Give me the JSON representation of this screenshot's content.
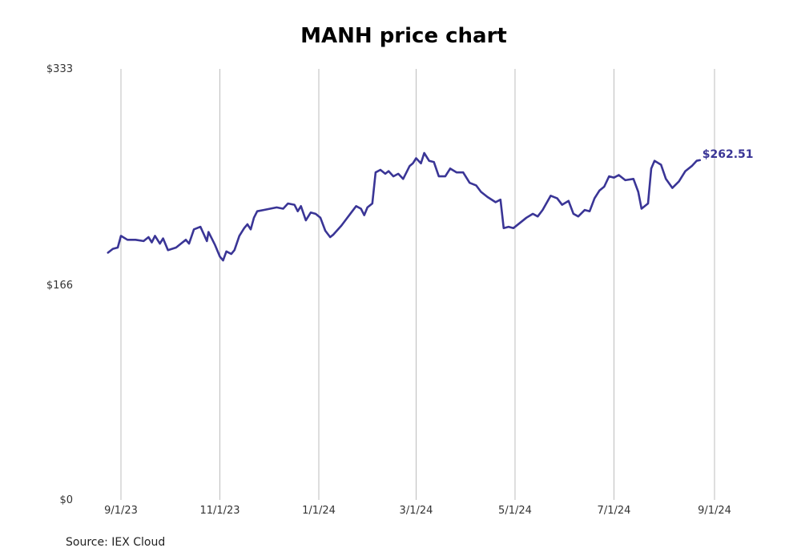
{
  "chart_data": {
    "type": "line",
    "title": "MANH price chart",
    "xlabel": "",
    "ylabel": "",
    "ylim": [
      0,
      333
    ],
    "y_ticks": [
      {
        "value": 0,
        "label": "$0"
      },
      {
        "value": 166,
        "label": "$166"
      },
      {
        "value": 333,
        "label": "$333"
      }
    ],
    "x_ticks": [
      {
        "date": "2023-09-01",
        "label": "9/1/23"
      },
      {
        "date": "2023-11-01",
        "label": "11/1/23"
      },
      {
        "date": "2024-01-01",
        "label": "1/1/24"
      },
      {
        "date": "2024-03-01",
        "label": "3/1/24"
      },
      {
        "date": "2024-05-01",
        "label": "5/1/24"
      },
      {
        "date": "2024-07-01",
        "label": "7/1/24"
      },
      {
        "date": "2024-09-01",
        "label": "9/1/24"
      }
    ],
    "grid": {
      "vertical": true,
      "horizontal": false
    },
    "line_color": "#3a3596",
    "grid_color": "#bdbdbd",
    "series": [
      {
        "last_value_label": "$262.51",
        "points": [
          [
            "2023-08-24",
            191
          ],
          [
            "2023-08-27",
            194
          ],
          [
            "2023-08-30",
            195
          ],
          [
            "2023-09-01",
            204
          ],
          [
            "2023-09-05",
            201
          ],
          [
            "2023-09-10",
            201
          ],
          [
            "2023-09-15",
            200
          ],
          [
            "2023-09-18",
            203
          ],
          [
            "2023-09-20",
            199
          ],
          [
            "2023-09-22",
            204
          ],
          [
            "2023-09-25",
            198
          ],
          [
            "2023-09-27",
            202
          ],
          [
            "2023-09-30",
            193
          ],
          [
            "2023-10-05",
            195
          ],
          [
            "2023-10-08",
            198
          ],
          [
            "2023-10-11",
            201
          ],
          [
            "2023-10-13",
            198
          ],
          [
            "2023-10-16",
            209
          ],
          [
            "2023-10-20",
            211
          ],
          [
            "2023-10-24",
            200
          ],
          [
            "2023-10-25",
            207
          ],
          [
            "2023-10-29",
            197
          ],
          [
            "2023-11-01",
            188
          ],
          [
            "2023-11-03",
            185
          ],
          [
            "2023-11-05",
            192
          ],
          [
            "2023-11-08",
            190
          ],
          [
            "2023-11-10",
            193
          ],
          [
            "2023-11-13",
            204
          ],
          [
            "2023-11-16",
            210
          ],
          [
            "2023-11-18",
            213
          ],
          [
            "2023-11-20",
            209
          ],
          [
            "2023-11-22",
            218
          ],
          [
            "2023-11-24",
            223
          ],
          [
            "2023-11-28",
            224
          ],
          [
            "2023-12-02",
            225
          ],
          [
            "2023-12-06",
            226
          ],
          [
            "2023-12-10",
            225
          ],
          [
            "2023-12-13",
            229
          ],
          [
            "2023-12-17",
            228
          ],
          [
            "2023-12-19",
            223
          ],
          [
            "2023-12-21",
            227
          ],
          [
            "2023-12-24",
            216
          ],
          [
            "2023-12-27",
            222
          ],
          [
            "2023-12-30",
            221
          ],
          [
            "2024-01-02",
            218
          ],
          [
            "2024-01-05",
            208
          ],
          [
            "2024-01-08",
            203
          ],
          [
            "2024-01-10",
            205
          ],
          [
            "2024-01-15",
            212
          ],
          [
            "2024-01-18",
            217
          ],
          [
            "2024-01-21",
            222
          ],
          [
            "2024-01-24",
            227
          ],
          [
            "2024-01-27",
            225
          ],
          [
            "2024-01-29",
            220
          ],
          [
            "2024-01-31",
            226
          ],
          [
            "2024-02-03",
            229
          ],
          [
            "2024-02-05",
            253
          ],
          [
            "2024-02-08",
            255
          ],
          [
            "2024-02-11",
            252
          ],
          [
            "2024-02-13",
            254
          ],
          [
            "2024-02-16",
            250
          ],
          [
            "2024-02-19",
            252
          ],
          [
            "2024-02-22",
            248
          ],
          [
            "2024-02-26",
            258
          ],
          [
            "2024-02-28",
            260
          ],
          [
            "2024-03-01",
            264
          ],
          [
            "2024-03-04",
            260
          ],
          [
            "2024-03-06",
            268
          ],
          [
            "2024-03-09",
            262
          ],
          [
            "2024-03-12",
            261
          ],
          [
            "2024-03-15",
            250
          ],
          [
            "2024-03-19",
            250
          ],
          [
            "2024-03-22",
            256
          ],
          [
            "2024-03-26",
            253
          ],
          [
            "2024-03-30",
            253
          ],
          [
            "2024-04-03",
            245
          ],
          [
            "2024-04-07",
            243
          ],
          [
            "2024-04-10",
            238
          ],
          [
            "2024-04-14",
            234
          ],
          [
            "2024-04-19",
            230
          ],
          [
            "2024-04-22",
            232
          ],
          [
            "2024-04-24",
            210
          ],
          [
            "2024-04-27",
            211
          ],
          [
            "2024-04-30",
            210
          ],
          [
            "2024-05-04",
            214
          ],
          [
            "2024-05-08",
            218
          ],
          [
            "2024-05-12",
            221
          ],
          [
            "2024-05-15",
            219
          ],
          [
            "2024-05-18",
            224
          ],
          [
            "2024-05-23",
            235
          ],
          [
            "2024-05-27",
            233
          ],
          [
            "2024-05-30",
            228
          ],
          [
            "2024-06-03",
            231
          ],
          [
            "2024-06-06",
            221
          ],
          [
            "2024-06-09",
            219
          ],
          [
            "2024-06-13",
            224
          ],
          [
            "2024-06-16",
            223
          ],
          [
            "2024-06-19",
            233
          ],
          [
            "2024-06-22",
            239
          ],
          [
            "2024-06-25",
            242
          ],
          [
            "2024-06-28",
            250
          ],
          [
            "2024-07-01",
            249
          ],
          [
            "2024-07-04",
            251
          ],
          [
            "2024-07-08",
            247
          ],
          [
            "2024-07-13",
            248
          ],
          [
            "2024-07-16",
            238
          ],
          [
            "2024-07-18",
            225
          ],
          [
            "2024-07-22",
            229
          ],
          [
            "2024-07-24",
            256
          ],
          [
            "2024-07-26",
            262
          ],
          [
            "2024-07-30",
            259
          ],
          [
            "2024-08-02",
            248
          ],
          [
            "2024-08-06",
            241
          ],
          [
            "2024-08-10",
            246
          ],
          [
            "2024-08-14",
            254
          ],
          [
            "2024-08-18",
            258
          ],
          [
            "2024-08-21",
            262
          ],
          [
            "2024-08-23",
            262.51
          ]
        ]
      }
    ]
  },
  "source": {
    "text": "Source: IEX Cloud"
  }
}
